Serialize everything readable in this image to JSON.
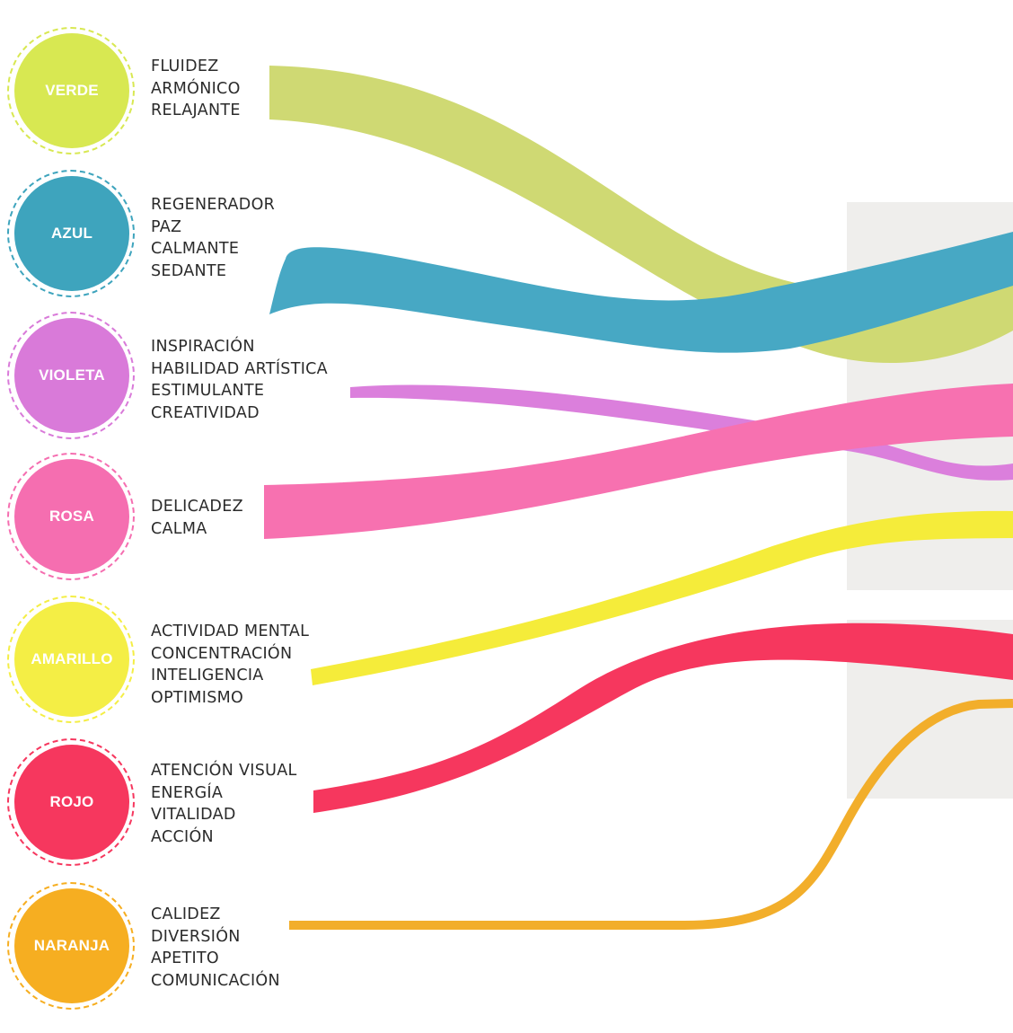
{
  "colors": [
    {
      "id": "verde",
      "label": "VERDE",
      "fill": "#d8e852",
      "ring": "#d8e852",
      "ribbon": "#cfd973",
      "keywords": [
        "FLUIDEZ",
        "ARMÓNICO",
        "RELAJANTE"
      ]
    },
    {
      "id": "azul",
      "label": "AZUL",
      "fill": "#3ea4bd",
      "ring": "#3ea4bd",
      "ribbon": "#47a8c4",
      "keywords": [
        "REGENERADOR",
        "PAZ",
        "CALMANTE",
        "SEDANTE"
      ]
    },
    {
      "id": "violeta",
      "label": "VIOLETA",
      "fill": "#d97ad9",
      "ring": "#d97ad9",
      "ribbon": "#db7fdc",
      "keywords": [
        "INSPIRACIÓN",
        "HABILIDAD ARTÍSTICA",
        "ESTIMULANTE",
        "CREATIVIDAD"
      ]
    },
    {
      "id": "rosa",
      "label": "ROSA",
      "fill": "#f56eb0",
      "ring": "#f56eb0",
      "ribbon": "#f771b0",
      "keywords": [
        "DELICADEZ",
        "CALMA"
      ]
    },
    {
      "id": "amarillo",
      "label": "AMARILLO",
      "fill": "#f4ee45",
      "ring": "#f4ee45",
      "ribbon": "#f5ec3a",
      "keywords": [
        "ACTIVIDAD MENTAL",
        "CONCENTRACIÓN",
        "INTELIGENCIA",
        "OPTIMISMO"
      ]
    },
    {
      "id": "rojo",
      "label": "ROJO",
      "fill": "#f6375e",
      "ring": "#f6375e",
      "ribbon": "#f6375e",
      "keywords": [
        "ATENCIÓN VISUAL",
        "ENERGÍA",
        "VITALIDAD",
        "ACCIÓN"
      ]
    },
    {
      "id": "naranja",
      "label": "NARANJA",
      "fill": "#f6ae21",
      "ring": "#f6ae21",
      "ribbon": "#f2ae2b",
      "keywords": [
        "CALIDEZ",
        "DIVERSIÓN",
        "APETITO",
        "COMUNICACIÓN"
      ]
    }
  ],
  "backdrop_color": "#efeeec",
  "label_text_color": "#2b2b2b"
}
